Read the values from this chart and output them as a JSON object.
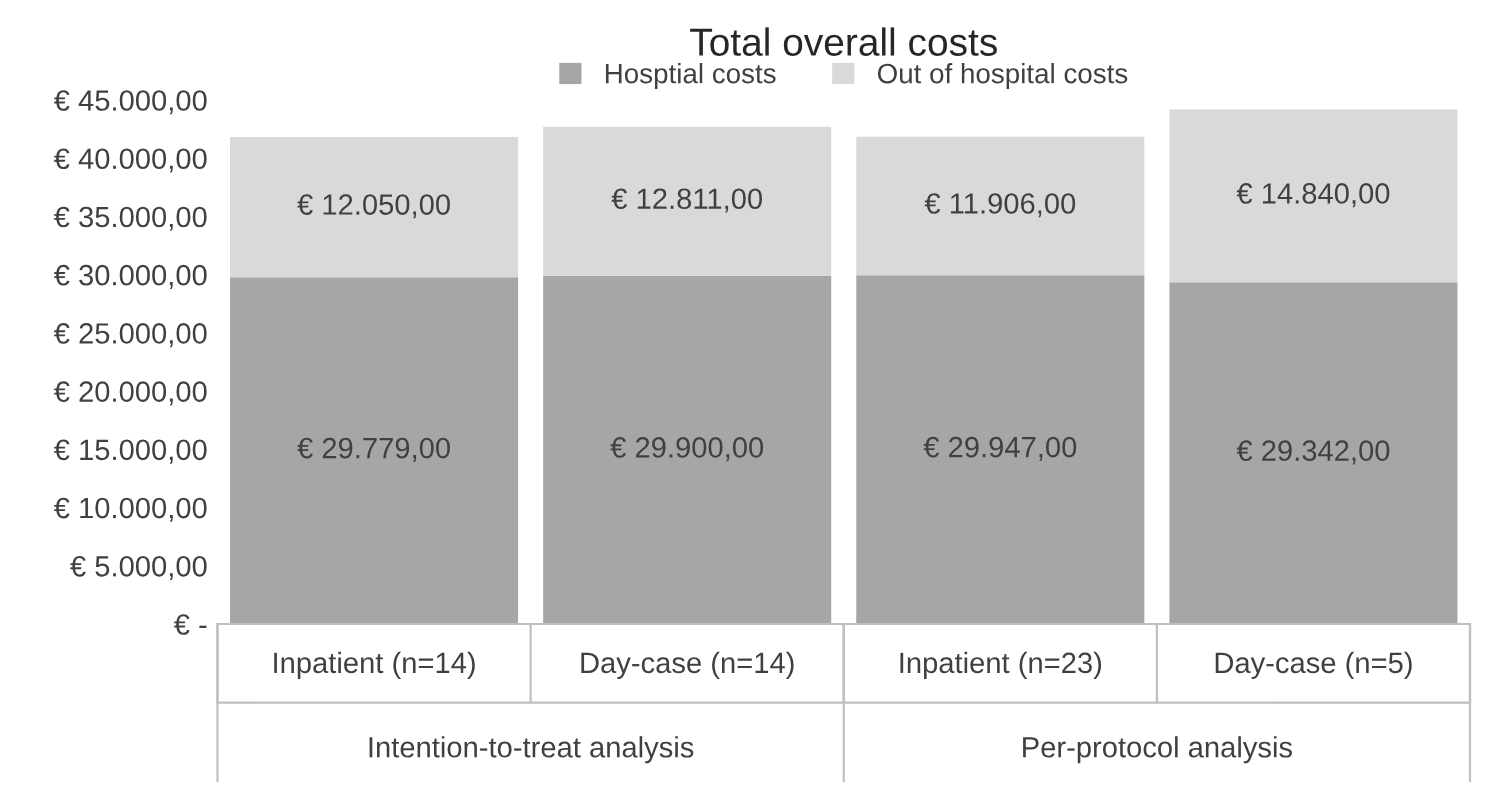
{
  "chart_data": {
    "type": "bar",
    "title": "Total overall costs",
    "stacked": true,
    "legend": "top",
    "grid": false,
    "categories": [
      "Inpatient (n=14)",
      "Day-case (n=14)",
      "Inpatient (n=23)",
      "Day-case (n=5)"
    ],
    "series": [
      {
        "name": "Hosptial costs",
        "color": "#a6a6a6",
        "values": [
          29779,
          29900,
          29947,
          29342
        ],
        "value_labels": [
          "€ 29.779,00",
          "€ 29.900,00",
          "€ 29.947,00",
          "€ 29.342,00"
        ]
      },
      {
        "name": "Out of hospital costs",
        "color": "#d9d9d9",
        "values": [
          12050,
          12811,
          11906,
          14840
        ],
        "value_labels": [
          "€ 12.050,00",
          "€ 12.811,00",
          "€ 11.906,00",
          "€ 14.840,00"
        ]
      }
    ],
    "ylim": [
      0,
      45000
    ],
    "yticks": [
      {
        "value": 0,
        "label": "€ -"
      },
      {
        "value": 5000,
        "label": "€ 5.000,00"
      },
      {
        "value": 10000,
        "label": "€ 10.000,00"
      },
      {
        "value": 15000,
        "label": "€ 15.000,00"
      },
      {
        "value": 20000,
        "label": "€ 20.000,00"
      },
      {
        "value": 25000,
        "label": "€ 25.000,00"
      },
      {
        "value": 30000,
        "label": "€ 30.000,00"
      },
      {
        "value": 35000,
        "label": "€ 35.000,00"
      },
      {
        "value": 40000,
        "label": "€ 40.000,00"
      },
      {
        "value": 45000,
        "label": "€ 45.000,00"
      }
    ],
    "annotations": [
      "Intention-to-treat analysis",
      "Per-protocol analysis"
    ]
  }
}
